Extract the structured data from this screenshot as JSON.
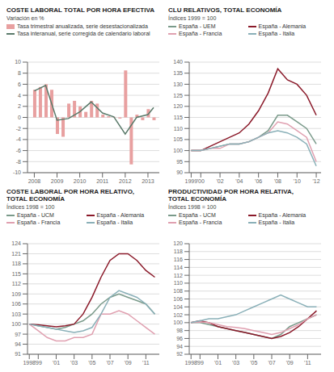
{
  "chart_data": [
    {
      "type": "bar",
      "title": "COSTE LABORAL TOTAL POR HORA EFECTIVA",
      "subtitle": "Variación en %",
      "series": [
        {
          "name": "Tasa trimestral anualizada, serie desestacionalizada",
          "type": "bar",
          "color": "#e8a0a0",
          "x": [
            2008.0,
            2008.25,
            2008.5,
            2008.75,
            2009.0,
            2009.25,
            2009.5,
            2009.75,
            2010.0,
            2010.25,
            2010.5,
            2010.75,
            2011.0,
            2011.25,
            2011.5,
            2011.75,
            2012.0,
            2012.25,
            2012.5,
            2012.75,
            2013.0,
            2013.25
          ],
          "values": [
            5.0,
            5.5,
            6.0,
            5.0,
            -3.0,
            -3.5,
            2.5,
            3.0,
            2.0,
            1.0,
            3.0,
            2.5,
            0.5,
            0.2,
            0.1,
            -0.2,
            8.5,
            -8.5,
            0.5,
            -0.5,
            1.5,
            -0.5
          ]
        },
        {
          "name": "Tasa interanual, serie corregida de calendario laboral",
          "type": "line",
          "color": "#5a7a6a",
          "x": [
            2008.0,
            2008.5,
            2009.0,
            2009.5,
            2010.0,
            2010.5,
            2011.0,
            2011.5,
            2012.0,
            2012.5,
            2013.0,
            2013.25
          ],
          "values": [
            4.8,
            5.8,
            -0.5,
            -0.2,
            1.0,
            2.8,
            0.8,
            0.1,
            -3.0,
            0.0,
            0.5,
            1.8
          ]
        }
      ],
      "xlim": [
        2007.7,
        2013.5
      ],
      "xticks": [
        2008,
        2009,
        2010,
        2011,
        2012,
        2013
      ],
      "ylim": [
        -10,
        10
      ],
      "yticks": [
        -10,
        -8,
        -6,
        -4,
        -2,
        0,
        2,
        4,
        6,
        8,
        10
      ],
      "grid": "y"
    },
    {
      "type": "line",
      "title": "CLU RELATIVOS, TOTAL ECONOMÍA",
      "subtitle": "Índices 1999 = 100",
      "x": [
        1999,
        2000,
        2001,
        2002,
        2003,
        2004,
        2005,
        2006,
        2007,
        2008,
        2009,
        2010,
        2011,
        2012
      ],
      "series": [
        {
          "name": "España - UEM",
          "color": "#7a9a8a",
          "values": [
            100,
            100,
            101,
            102,
            103,
            103,
            104,
            106,
            109,
            116,
            116,
            113,
            110,
            103
          ]
        },
        {
          "name": "España - Alemania",
          "color": "#8b1a2a",
          "values": [
            100,
            100,
            102,
            104,
            106,
            108,
            112,
            118,
            126,
            137,
            132,
            130,
            125,
            116
          ]
        },
        {
          "name": "España - Francia",
          "color": "#e0a0b0",
          "values": [
            100,
            100,
            101,
            101,
            103,
            103,
            104,
            106,
            108,
            113,
            112,
            109,
            106,
            95
          ]
        },
        {
          "name": "España - Italia",
          "color": "#8ab0b8",
          "values": [
            100,
            100,
            101,
            102,
            103,
            103,
            104,
            106,
            108,
            109,
            108,
            106,
            103,
            93
          ]
        }
      ],
      "xlim": [
        1998.8,
        2012.5
      ],
      "xticks": [
        1999,
        {
          "value": 2000,
          "label": "'00"
        },
        {
          "value": 2002,
          "label": "'02"
        },
        {
          "value": 2004,
          "label": "'04"
        },
        {
          "value": 2006,
          "label": "'06"
        },
        {
          "value": 2008,
          "label": "'08"
        },
        {
          "value": 2010,
          "label": "'10"
        },
        {
          "value": 2012,
          "label": "'12"
        }
      ],
      "ylim": [
        90,
        140
      ],
      "yticks": [
        90,
        95,
        100,
        105,
        110,
        115,
        120,
        125,
        130,
        135,
        140
      ],
      "grid": "y"
    },
    {
      "type": "line",
      "title": "COSTE LABORAL POR HORA RELATIVO,\nTOTAL ECONOMÍA",
      "subtitle": "Índices 1998 = 100",
      "x": [
        1998,
        1999,
        2000,
        2001,
        2002,
        2003,
        2004,
        2005,
        2006,
        2007,
        2008,
        2009,
        2010,
        2011,
        2012
      ],
      "series": [
        {
          "name": "España - UCM",
          "color": "#7a9a8a",
          "values": [
            100,
            99.5,
            99,
            98.5,
            99,
            100,
            101,
            103,
            106,
            108,
            109,
            108,
            107,
            106,
            103
          ]
        },
        {
          "name": "España - Alemania",
          "color": "#8b1a2a",
          "values": [
            100,
            99.8,
            99.5,
            99.2,
            99.5,
            100,
            103,
            108,
            114,
            119,
            121,
            121,
            119,
            116,
            114
          ]
        },
        {
          "name": "España - Francia",
          "color": "#e0a0b0",
          "values": [
            100,
            98,
            96,
            95,
            95,
            96,
            96,
            97,
            103,
            103,
            104,
            103,
            101,
            99,
            97
          ]
        },
        {
          "name": "España - Italia",
          "color": "#8ab0b8",
          "values": [
            100,
            99.5,
            99,
            98.5,
            98,
            97.5,
            98,
            99,
            103,
            108,
            110,
            109,
            108,
            106,
            103
          ]
        }
      ],
      "xlim": [
        1997.8,
        2012.5
      ],
      "xticks": [
        1998,
        {
          "value": 1999,
          "label": "'99"
        },
        {
          "value": 2001,
          "label": "'01"
        },
        {
          "value": 2003,
          "label": "'03"
        },
        {
          "value": 2005,
          "label": "'05"
        },
        {
          "value": 2007,
          "label": "'07"
        },
        {
          "value": 2009,
          "label": "'09"
        },
        {
          "value": 2011,
          "label": "'11"
        }
      ],
      "ylim": [
        91,
        124
      ],
      "yticks": [
        91,
        94,
        97,
        100,
        103,
        106,
        109,
        112,
        115,
        118,
        121,
        124
      ],
      "grid": "y"
    },
    {
      "type": "line",
      "title": "PRODUCTIVIDAD POR HORA RELATIVA,\nTOTAL ECONOMÍA",
      "subtitle": "Índices 1998 = 100",
      "x": [
        1998,
        1999,
        2000,
        2001,
        2002,
        2003,
        2004,
        2005,
        2006,
        2007,
        2008,
        2009,
        2010,
        2011,
        2012
      ],
      "series": [
        {
          "name": "España - UCM",
          "color": "#7a9a8a",
          "values": [
            100,
            100,
            99.5,
            99,
            98.5,
            98,
            97.5,
            97,
            96.5,
            96,
            97,
            99,
            100,
            101,
            102
          ]
        },
        {
          "name": "España - Alemania",
          "color": "#8b1a2a",
          "values": [
            100,
            100.5,
            100,
            99,
            98.5,
            98,
            97.5,
            97,
            96.5,
            96,
            96.5,
            97.5,
            99,
            101,
            103
          ]
        },
        {
          "name": "España - Francia",
          "color": "#e0a0b0",
          "values": [
            100,
            100.2,
            100,
            99.5,
            99,
            98.8,
            98.5,
            98,
            97.5,
            97,
            97.5,
            98.5,
            99.5,
            101,
            102
          ]
        },
        {
          "name": "España - Italia",
          "color": "#8ab0b8",
          "values": [
            100,
            100.5,
            101,
            101,
            101.5,
            102,
            103,
            104,
            105,
            106,
            107,
            106,
            105,
            104,
            104
          ]
        }
      ],
      "xlim": [
        1997.8,
        2012.5
      ],
      "xticks": [
        1998,
        {
          "value": 1999,
          "label": "'99"
        },
        {
          "value": 2001,
          "label": "'01"
        },
        {
          "value": 2003,
          "label": "'03"
        },
        {
          "value": 2005,
          "label": "'05"
        },
        {
          "value": 2007,
          "label": "'07"
        },
        {
          "value": 2009,
          "label": "'09"
        },
        {
          "value": 2011,
          "label": "'11"
        }
      ],
      "ylim": [
        92,
        120
      ],
      "yticks": [
        92,
        94,
        96,
        98,
        100,
        102,
        104,
        106,
        108,
        110,
        112,
        114,
        116,
        118,
        120
      ],
      "grid": "y"
    }
  ]
}
